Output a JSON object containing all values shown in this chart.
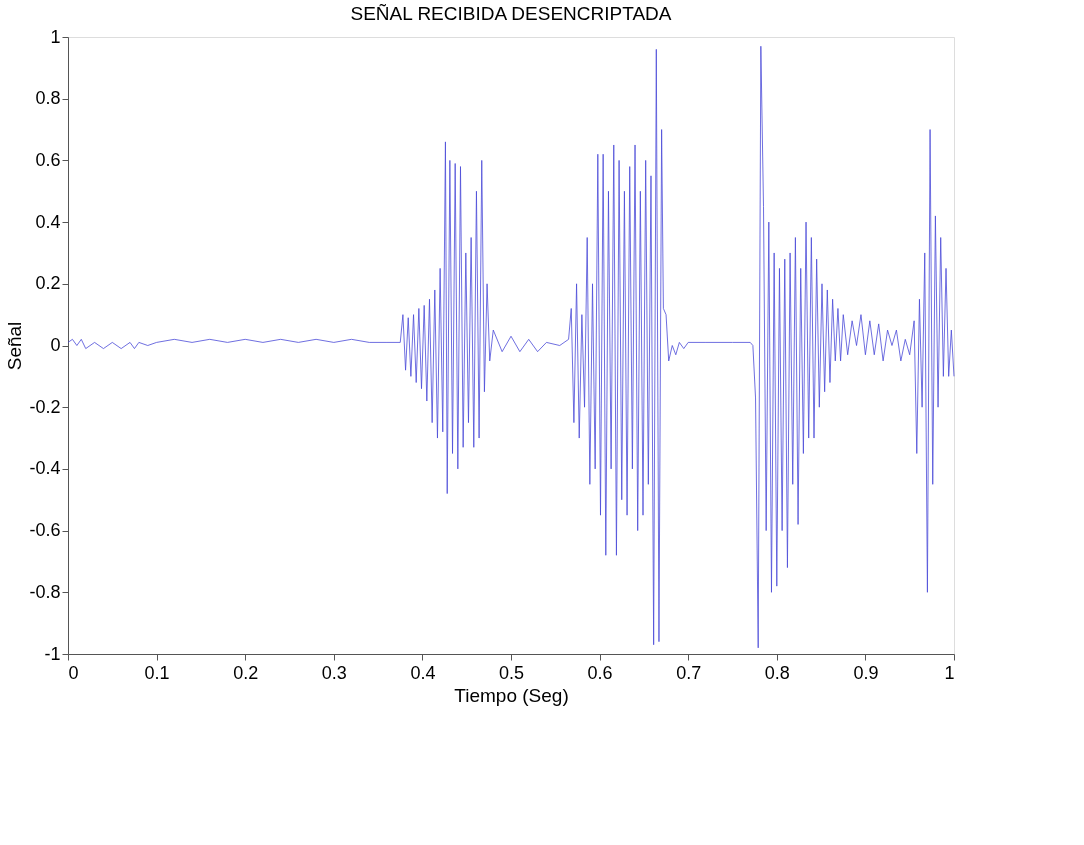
{
  "chart_data": {
    "type": "line",
    "title": "SEÑAL RECIBIDA DESENCRIPTADA",
    "xlabel": "Tiempo (Seg)",
    "ylabel": "Señal",
    "xlim": [
      0,
      1
    ],
    "xticks": [
      0,
      0.1,
      0.2,
      0.3,
      0.4,
      0.5,
      0.6,
      0.7,
      0.8,
      0.9,
      1
    ],
    "ylim": [
      -1,
      1
    ],
    "yticks": [
      -1,
      -0.8,
      -0.6,
      -0.4,
      -0.2,
      0,
      0.2,
      0.4,
      0.6,
      0.8,
      1
    ],
    "grid": false,
    "legend": false,
    "marker": "none",
    "line_style": "solid",
    "series": [
      {
        "color": "#4a4ad8",
        "x": [
          0,
          0.005,
          0.01,
          0.015,
          0.02,
          0.03,
          0.04,
          0.05,
          0.06,
          0.07,
          0.075,
          0.08,
          0.09,
          0.1,
          0.12,
          0.14,
          0.16,
          0.18,
          0.2,
          0.22,
          0.24,
          0.26,
          0.28,
          0.3,
          0.32,
          0.34,
          0.36,
          0.375,
          0.378,
          0.381,
          0.384,
          0.387,
          0.39,
          0.393,
          0.396,
          0.399,
          0.402,
          0.405,
          0.408,
          0.411,
          0.414,
          0.417,
          0.42,
          0.423,
          0.426,
          0.428,
          0.431,
          0.434,
          0.437,
          0.44,
          0.443,
          0.446,
          0.449,
          0.452,
          0.455,
          0.458,
          0.461,
          0.464,
          0.467,
          0.47,
          0.473,
          0.476,
          0.48,
          0.49,
          0.5,
          0.51,
          0.52,
          0.53,
          0.54,
          0.555,
          0.565,
          0.568,
          0.571,
          0.574,
          0.577,
          0.58,
          0.583,
          0.586,
          0.589,
          0.592,
          0.595,
          0.598,
          0.601,
          0.604,
          0.607,
          0.61,
          0.613,
          0.616,
          0.619,
          0.622,
          0.625,
          0.628,
          0.631,
          0.634,
          0.637,
          0.64,
          0.643,
          0.646,
          0.649,
          0.652,
          0.655,
          0.658,
          0.661,
          0.664,
          0.667,
          0.67,
          0.672,
          0.675,
          0.678,
          0.682,
          0.686,
          0.69,
          0.695,
          0.7,
          0.72,
          0.75,
          0.77,
          0.773,
          0.776,
          0.779,
          0.782,
          0.785,
          0.788,
          0.791,
          0.794,
          0.797,
          0.8,
          0.803,
          0.806,
          0.809,
          0.812,
          0.815,
          0.818,
          0.821,
          0.824,
          0.827,
          0.83,
          0.833,
          0.836,
          0.839,
          0.842,
          0.845,
          0.848,
          0.851,
          0.854,
          0.857,
          0.86,
          0.863,
          0.866,
          0.869,
          0.872,
          0.875,
          0.88,
          0.885,
          0.89,
          0.895,
          0.9,
          0.905,
          0.91,
          0.915,
          0.92,
          0.925,
          0.93,
          0.935,
          0.94,
          0.945,
          0.95,
          0.955,
          0.958,
          0.961,
          0.964,
          0.967,
          0.97,
          0.973,
          0.976,
          0.979,
          0.982,
          0.985,
          0.988,
          0.991,
          0.994,
          0.997,
          1.0
        ],
        "values": [
          0.01,
          0.02,
          0.0,
          0.02,
          -0.01,
          0.01,
          -0.01,
          0.01,
          -0.01,
          0.01,
          -0.01,
          0.01,
          0.0,
          0.01,
          0.02,
          0.01,
          0.02,
          0.01,
          0.02,
          0.01,
          0.02,
          0.01,
          0.02,
          0.01,
          0.02,
          0.01,
          0.01,
          0.01,
          0.1,
          -0.08,
          0.09,
          -0.1,
          0.1,
          -0.12,
          0.12,
          -0.14,
          0.13,
          -0.18,
          0.15,
          -0.25,
          0.18,
          -0.3,
          0.25,
          -0.28,
          0.66,
          -0.48,
          0.6,
          -0.35,
          0.59,
          -0.4,
          0.58,
          -0.33,
          0.3,
          -0.25,
          0.35,
          -0.33,
          0.5,
          -0.3,
          0.6,
          -0.15,
          0.2,
          -0.05,
          0.05,
          -0.02,
          0.03,
          -0.02,
          0.02,
          -0.02,
          0.01,
          0.0,
          0.02,
          0.12,
          -0.25,
          0.2,
          -0.3,
          0.1,
          -0.2,
          0.35,
          -0.45,
          0.2,
          -0.4,
          0.62,
          -0.55,
          0.62,
          -0.68,
          0.5,
          -0.4,
          0.65,
          -0.68,
          0.6,
          -0.5,
          0.5,
          -0.55,
          0.58,
          -0.4,
          0.65,
          -0.6,
          0.5,
          -0.55,
          0.6,
          -0.45,
          0.55,
          -0.97,
          0.96,
          -0.96,
          0.7,
          0.12,
          0.1,
          -0.05,
          0.0,
          -0.03,
          0.01,
          -0.01,
          0.01,
          0.01,
          0.01,
          0.01,
          0.0,
          -0.17,
          -0.98,
          0.97,
          0.45,
          -0.6,
          0.4,
          -0.8,
          0.3,
          -0.78,
          0.25,
          -0.6,
          0.28,
          -0.72,
          0.3,
          -0.45,
          0.35,
          -0.58,
          0.25,
          -0.35,
          0.4,
          -0.3,
          0.35,
          -0.3,
          0.28,
          -0.2,
          0.2,
          -0.15,
          0.18,
          -0.12,
          0.15,
          -0.05,
          0.12,
          -0.05,
          0.1,
          -0.03,
          0.08,
          0.0,
          0.1,
          -0.03,
          0.08,
          -0.03,
          0.07,
          -0.05,
          0.05,
          0.0,
          0.05,
          -0.05,
          0.02,
          -0.03,
          0.08,
          -0.35,
          0.15,
          -0.2,
          0.3,
          -0.8,
          0.7,
          -0.45,
          0.42,
          -0.2,
          0.35,
          -0.1,
          0.25,
          -0.1,
          0.05,
          -0.1
        ]
      }
    ]
  }
}
